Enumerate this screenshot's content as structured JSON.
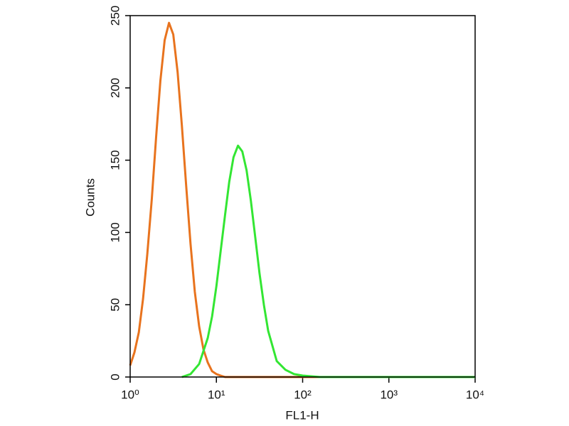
{
  "chart_data": {
    "type": "line",
    "xlabel": "FL1-H",
    "ylabel": "Counts",
    "xscale": "log",
    "xlim": [
      1,
      10000
    ],
    "xticks": [
      {
        "value": 1,
        "label": "10⁰"
      },
      {
        "value": 10,
        "label": "10¹"
      },
      {
        "value": 100,
        "label": "10²"
      },
      {
        "value": 1000,
        "label": "10³"
      },
      {
        "value": 10000,
        "label": "10⁴"
      }
    ],
    "ylim": [
      0,
      250
    ],
    "yticks": [
      0,
      50,
      100,
      150,
      200,
      250
    ],
    "series": [
      {
        "color": "#e8731e",
        "x": [
          1,
          1.12,
          1.26,
          1.41,
          1.58,
          1.78,
          2,
          2.24,
          2.51,
          2.82,
          3.16,
          3.55,
          3.98,
          4.47,
          5.01,
          5.62,
          6.31,
          7.08,
          7.94,
          8.91,
          10,
          11.2,
          12.6,
          10000
        ],
        "values": [
          8,
          17,
          31,
          54,
          85,
          123,
          166,
          205,
          233,
          245,
          237,
          211,
          174,
          132,
          92,
          59,
          35,
          19,
          10,
          4,
          2,
          1,
          0,
          0
        ]
      },
      {
        "color": "#33e633",
        "x": [
          3.98,
          5.01,
          6.31,
          7.94,
          8.91,
          10,
          11.2,
          12.6,
          14.1,
          15.8,
          17.8,
          20,
          22.4,
          25.1,
          28.2,
          31.6,
          35.5,
          39.8,
          50.1,
          63.1,
          79.4,
          100,
          158,
          10000
        ],
        "values": [
          0,
          2,
          9,
          27,
          42,
          63,
          87,
          112,
          135,
          152,
          160,
          156,
          143,
          122,
          97,
          72,
          50,
          32,
          11,
          5,
          2,
          1,
          0,
          0
        ]
      }
    ]
  }
}
